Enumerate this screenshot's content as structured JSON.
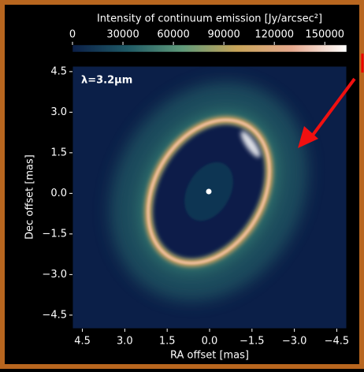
{
  "chart_data": {
    "type": "image",
    "title": "Intensity of continuum emission [Jy/arcsec²]",
    "annotation": "λ=3.2μm",
    "xlabel": "RA offset [mas]",
    "ylabel": "Dec offset [mas]",
    "xlim": [
      4.85,
      -4.85
    ],
    "xticks": [
      4.5,
      {
        "value": 3,
        "label": "3.0"
      },
      1.5,
      {
        "value": 0,
        "label": "0.0"
      },
      {
        "value": -1.5,
        "label": "−1.5"
      },
      {
        "value": -3,
        "label": "−3.0"
      },
      {
        "value": -4.5,
        "label": "−4.5"
      }
    ],
    "ylim": [
      -5.0,
      4.7
    ],
    "yticks": [
      4.5,
      {
        "value": 3,
        "label": "3.0"
      },
      1.5,
      {
        "value": 0,
        "label": "0.0"
      },
      {
        "value": -1.5,
        "label": "−1.5"
      },
      {
        "value": -3,
        "label": "−3.0"
      },
      {
        "value": -4.5,
        "label": "−4.5"
      }
    ],
    "clim": [
      0,
      163000
    ],
    "cticks": [
      0,
      30000,
      60000,
      90000,
      120000,
      150000
    ],
    "colormap": [
      "#0b1f48",
      "#1f5a66",
      "#5f9a7a",
      "#c9a55a",
      "#e6a98e",
      "#ffffff"
    ]
  }
}
